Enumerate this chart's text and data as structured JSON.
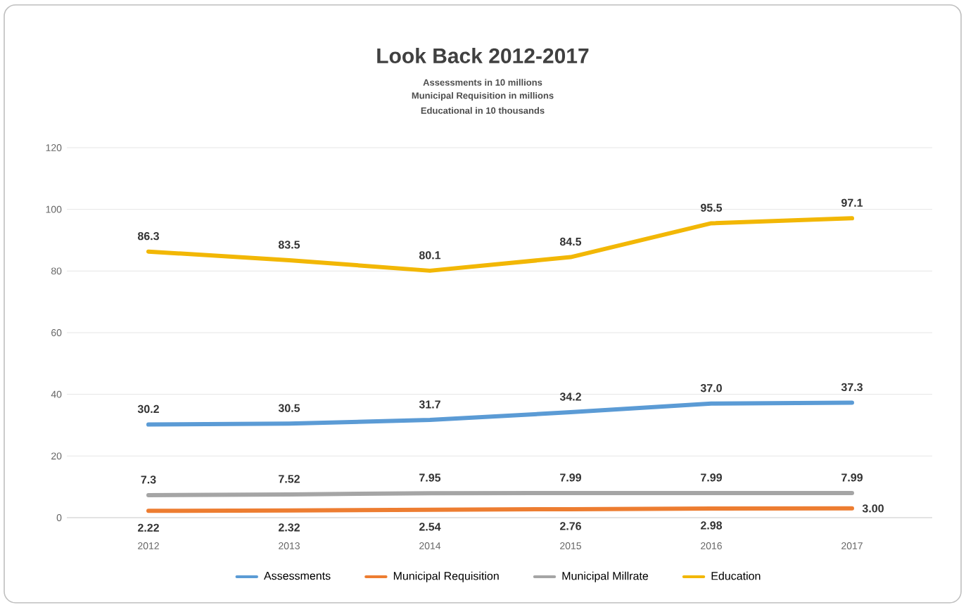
{
  "chart_data": {
    "type": "line",
    "title": "Look Back 2012-2017",
    "subtitle": "Assessments in 10 millions",
    "annotations": [
      "Municipal Requisition in millions",
      "Educational in 10 thousands"
    ],
    "categories": [
      "2012",
      "2013",
      "2014",
      "2015",
      "2016",
      "2017"
    ],
    "series": [
      {
        "name": "Assessments",
        "color": "#5b9bd5",
        "values": [
          30.2,
          30.5,
          31.7,
          34.2,
          37.0,
          37.3
        ],
        "value_labels": [
          "30.2",
          "30.5",
          "31.7",
          "34.2",
          "37.0",
          "37.3"
        ]
      },
      {
        "name": "Municipal Requisition",
        "color": "#ed7d31",
        "values": [
          2.22,
          2.32,
          2.54,
          2.76,
          2.98,
          3.0
        ],
        "value_labels": [
          "2.22",
          "2.32",
          "2.54",
          "2.76",
          "2.98",
          "3.00"
        ]
      },
      {
        "name": "Municipal Millrate",
        "color": "#a5a5a5",
        "values": [
          7.3,
          7.52,
          7.95,
          7.99,
          7.99,
          7.99
        ],
        "value_labels": [
          "7.3",
          "7.52",
          "7.95",
          "7.99",
          "7.99",
          "7.99"
        ]
      },
      {
        "name": "Education",
        "color": "#f2b705",
        "values": [
          86.3,
          83.5,
          80.1,
          84.5,
          95.5,
          97.1
        ],
        "value_labels": [
          "86.3",
          "83.5",
          "80.1",
          "84.5",
          "95.5",
          "97.1"
        ]
      }
    ],
    "ylim": [
      0,
      120
    ],
    "yticks": [
      0,
      20,
      40,
      60,
      80,
      100,
      120
    ],
    "grid": "y",
    "legend": "bottom",
    "line_style": "solid"
  }
}
